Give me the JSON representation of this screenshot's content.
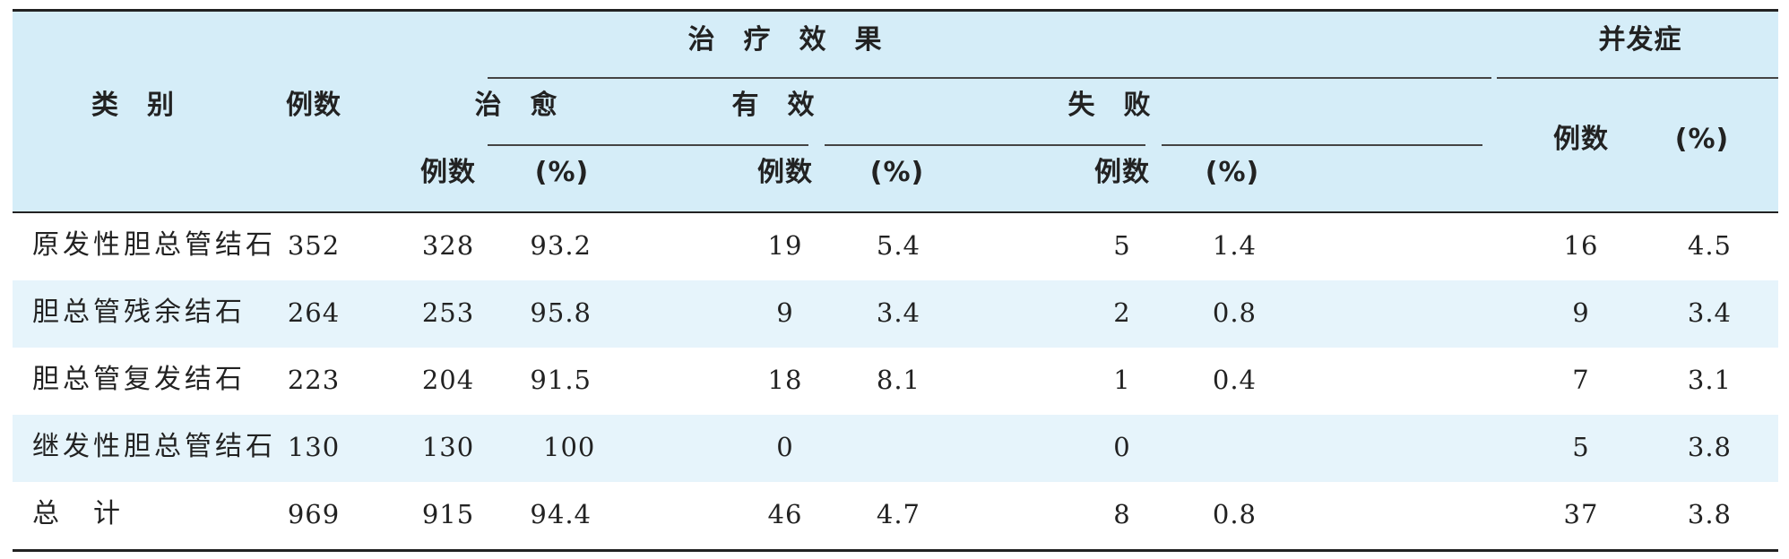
{
  "headers": {
    "category": "类　别",
    "cases": "例数",
    "treatment_effect": "治　疗　效　果",
    "complication": "并发症",
    "cured": "治　愈",
    "effective": "有　效",
    "failed": "失　败",
    "cases_sub": "例数",
    "pct_sub": "(%)"
  },
  "rows": [
    {
      "category": "原发性胆总管结石",
      "cases": "352",
      "cured_n": "328",
      "cured_pct": "93.2",
      "eff_n": "19",
      "eff_pct": "5.4",
      "fail_n": "5",
      "fail_pct": "1.4",
      "comp_n": "16",
      "comp_pct": "4.5"
    },
    {
      "category": "胆总管残余结石",
      "cases": "264",
      "cured_n": "253",
      "cured_pct": "95.8",
      "eff_n": "9",
      "eff_pct": "3.4",
      "fail_n": "2",
      "fail_pct": "0.8",
      "comp_n": "9",
      "comp_pct": "3.4"
    },
    {
      "category": "胆总管复发结石",
      "cases": "223",
      "cured_n": "204",
      "cured_pct": "91.5",
      "eff_n": "18",
      "eff_pct": "8.1",
      "fail_n": "1",
      "fail_pct": "0.4",
      "comp_n": "7",
      "comp_pct": "3.1"
    },
    {
      "category": "继发性胆总管结石",
      "cases": "130",
      "cured_n": "130",
      "cured_pct": "100",
      "eff_n": "0",
      "eff_pct": "",
      "fail_n": "0",
      "fail_pct": "",
      "comp_n": "5",
      "comp_pct": "3.8"
    },
    {
      "category": "总　计",
      "cases": "969",
      "cured_n": "915",
      "cured_pct": "94.4",
      "eff_n": "46",
      "eff_pct": "4.7",
      "fail_n": "8",
      "fail_pct": "0.8",
      "comp_n": "37",
      "comp_pct": "3.8"
    }
  ],
  "colors": {
    "header_bg": "#d5edf8",
    "stripe_bg": "#e6f4fb",
    "rule": "#222222"
  }
}
